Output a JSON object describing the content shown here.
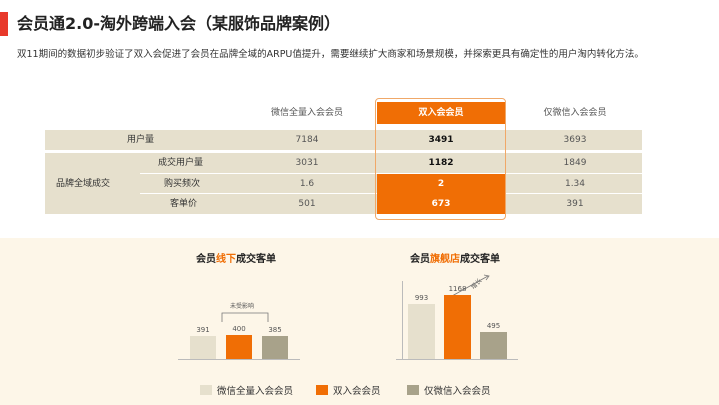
{
  "header": {
    "title": "会员通2.0-淘外跨端入会（某服饰品牌案例）",
    "subtitle": "双11期间的数据初步验证了双入会促进了会员在品牌全域的ARPU值提升，需要继续扩大商家和场景规模，并探索更具有确定性的用户淘内转化方法。"
  },
  "table": {
    "columns": [
      "微信全量入会会员",
      "双入会会员",
      "仅微信入会会员"
    ],
    "rows": {
      "users": {
        "label": "用户量",
        "values": [
          "7184",
          "3491",
          "3693"
        ]
      },
      "group_label": "品牌全域成交",
      "buyers": {
        "label": "成交用户量",
        "values": [
          "3031",
          "1182",
          "1849"
        ]
      },
      "frequency": {
        "label": "购买频次",
        "values": [
          "1.6",
          "2",
          "1.34"
        ]
      },
      "aov": {
        "label": "客单价",
        "values": [
          "501",
          "673",
          "391"
        ]
      }
    }
  },
  "charts": {
    "offline": {
      "title_pre": "会员",
      "title_accent": "线下",
      "title_post": "成交客单",
      "note": "未受影响",
      "values": [
        "391",
        "400",
        "385"
      ]
    },
    "flagship": {
      "title_pre": "会员",
      "title_accent": "旗舰店",
      "title_post": "成交客单",
      "note": "增长",
      "values": [
        "993",
        "1168",
        "495"
      ]
    }
  },
  "chart_data": [
    {
      "type": "bar",
      "title": "会员线下成交客单",
      "categories": [
        "微信全量入会会员",
        "双入会会员",
        "仅微信入会会员"
      ],
      "values": [
        391,
        400,
        385
      ]
    },
    {
      "type": "bar",
      "title": "会员旗舰店成交客单",
      "categories": [
        "微信全量入会会员",
        "双入会会员",
        "仅微信入会会员"
      ],
      "values": [
        993,
        1168,
        495
      ]
    }
  ],
  "legend": [
    {
      "label": "微信全量入会会员",
      "color": "#e6e0cd"
    },
    {
      "label": "双入会会员",
      "color": "#f06e05"
    },
    {
      "label": "仅微信入会会员",
      "color": "#a8a28a"
    }
  ]
}
